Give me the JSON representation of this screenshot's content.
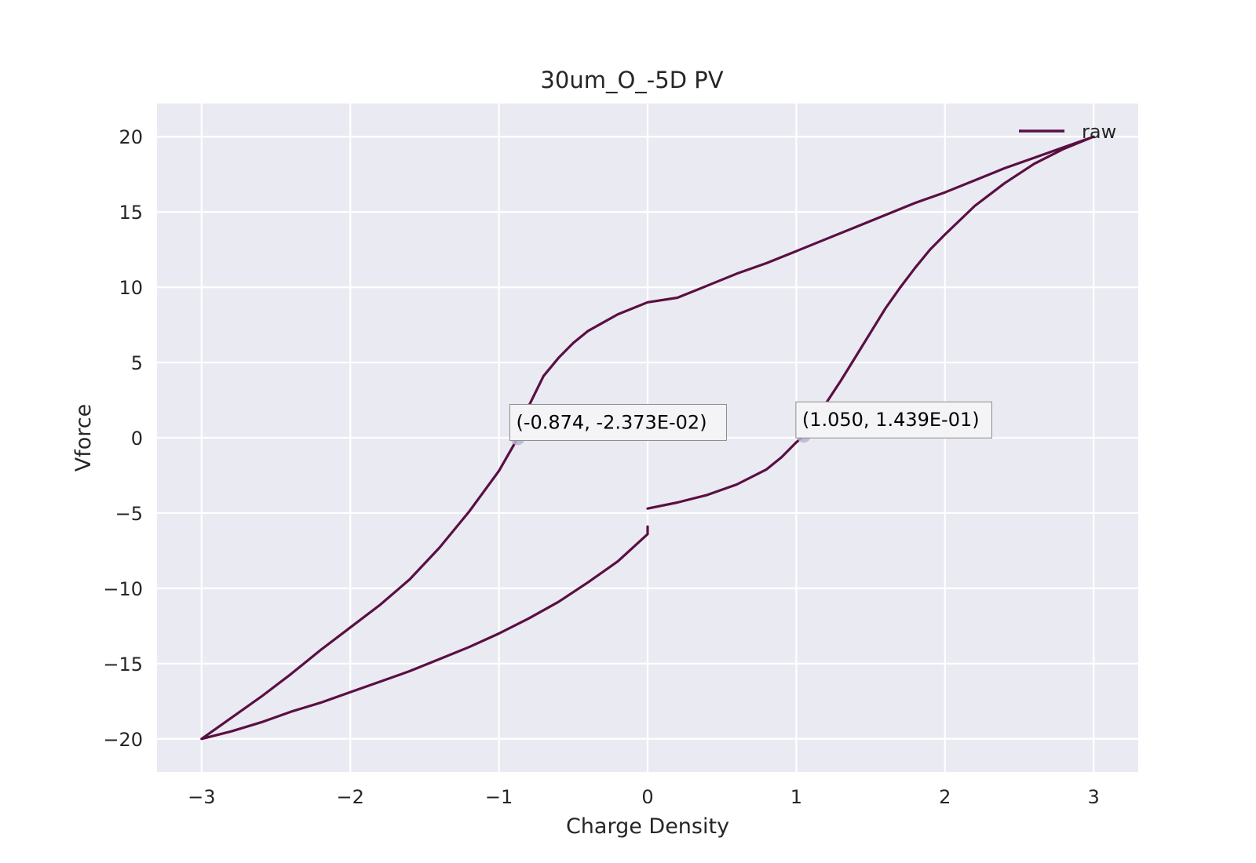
{
  "chart_data": {
    "type": "line",
    "title": "30um_O_-5D PV",
    "xlabel": "Charge Density",
    "ylabel": "Vforce",
    "xlim": [
      -3.3,
      3.3
    ],
    "ylim": [
      -22.2,
      22.2
    ],
    "xticks": [
      -3,
      -2,
      -1,
      0,
      1,
      2,
      3
    ],
    "xtick_labels": [
      "−3",
      "−2",
      "−1",
      "0",
      "1",
      "2",
      "3"
    ],
    "yticks": [
      -20,
      -15,
      -10,
      -5,
      0,
      5,
      10,
      15,
      20
    ],
    "ytick_labels": [
      "−20",
      "−15",
      "−10",
      "−5",
      "0",
      "5",
      "10",
      "15",
      "20"
    ],
    "grid": true,
    "background_color": "#eaeaf2",
    "grid_color": "#ffffff",
    "legend_position": "top-right",
    "series": [
      {
        "name": "raw",
        "color": "#5a0f42",
        "points": [
          [
            0.0,
            -4.7
          ],
          [
            0.2,
            -4.3
          ],
          [
            0.4,
            -3.8
          ],
          [
            0.6,
            -3.1
          ],
          [
            0.8,
            -2.1
          ],
          [
            0.9,
            -1.3
          ],
          [
            1.0,
            -0.3
          ],
          [
            1.05,
            0.14
          ],
          [
            1.1,
            0.9
          ],
          [
            1.2,
            2.3
          ],
          [
            1.3,
            3.8
          ],
          [
            1.4,
            5.4
          ],
          [
            1.5,
            7.0
          ],
          [
            1.6,
            8.6
          ],
          [
            1.7,
            10.0
          ],
          [
            1.8,
            11.3
          ],
          [
            1.9,
            12.5
          ],
          [
            2.0,
            13.5
          ],
          [
            2.2,
            15.4
          ],
          [
            2.4,
            16.9
          ],
          [
            2.6,
            18.2
          ],
          [
            2.8,
            19.2
          ],
          [
            3.0,
            20.0
          ],
          [
            2.8,
            19.3
          ],
          [
            2.6,
            18.6
          ],
          [
            2.4,
            17.9
          ],
          [
            2.2,
            17.1
          ],
          [
            2.0,
            16.3
          ],
          [
            1.8,
            15.6
          ],
          [
            1.6,
            14.8
          ],
          [
            1.4,
            14.0
          ],
          [
            1.2,
            13.2
          ],
          [
            1.0,
            12.4
          ],
          [
            0.8,
            11.6
          ],
          [
            0.6,
            10.9
          ],
          [
            0.4,
            10.1
          ],
          [
            0.2,
            9.3
          ],
          [
            0.0,
            9.0
          ],
          [
            -0.2,
            8.2
          ],
          [
            -0.4,
            7.1
          ],
          [
            -0.5,
            6.3
          ],
          [
            -0.6,
            5.3
          ],
          [
            -0.7,
            4.1
          ],
          [
            -0.8,
            2.1
          ],
          [
            -0.874,
            -0.02
          ],
          [
            -1.0,
            -2.2
          ],
          [
            -1.2,
            -4.9
          ],
          [
            -1.4,
            -7.3
          ],
          [
            -1.6,
            -9.4
          ],
          [
            -1.8,
            -11.1
          ],
          [
            -2.0,
            -12.6
          ],
          [
            -2.2,
            -14.1
          ],
          [
            -2.4,
            -15.7
          ],
          [
            -2.6,
            -17.2
          ],
          [
            -2.8,
            -18.6
          ],
          [
            -3.0,
            -20.0
          ],
          [
            -2.8,
            -19.5
          ],
          [
            -2.6,
            -18.9
          ],
          [
            -2.4,
            -18.2
          ],
          [
            -2.2,
            -17.6
          ],
          [
            -2.0,
            -16.9
          ],
          [
            -1.8,
            -16.2
          ],
          [
            -1.6,
            -15.5
          ],
          [
            -1.4,
            -14.7
          ],
          [
            -1.2,
            -13.9
          ],
          [
            -1.0,
            -13.0
          ],
          [
            -0.8,
            -12.0
          ],
          [
            -0.6,
            -10.9
          ],
          [
            -0.4,
            -9.6
          ],
          [
            -0.2,
            -8.2
          ],
          [
            0.0,
            -6.4
          ],
          [
            0.0,
            -5.9
          ]
        ]
      }
    ],
    "annotations": [
      {
        "x": -0.874,
        "y": -0.02373,
        "label": "(-0.874, -2.373E-02)",
        "marker_color": "#b8b4d6"
      },
      {
        "x": 1.05,
        "y": 0.1439,
        "label": "(1.050, 1.439E-01)",
        "marker_color": "#b8b4d6"
      }
    ]
  }
}
